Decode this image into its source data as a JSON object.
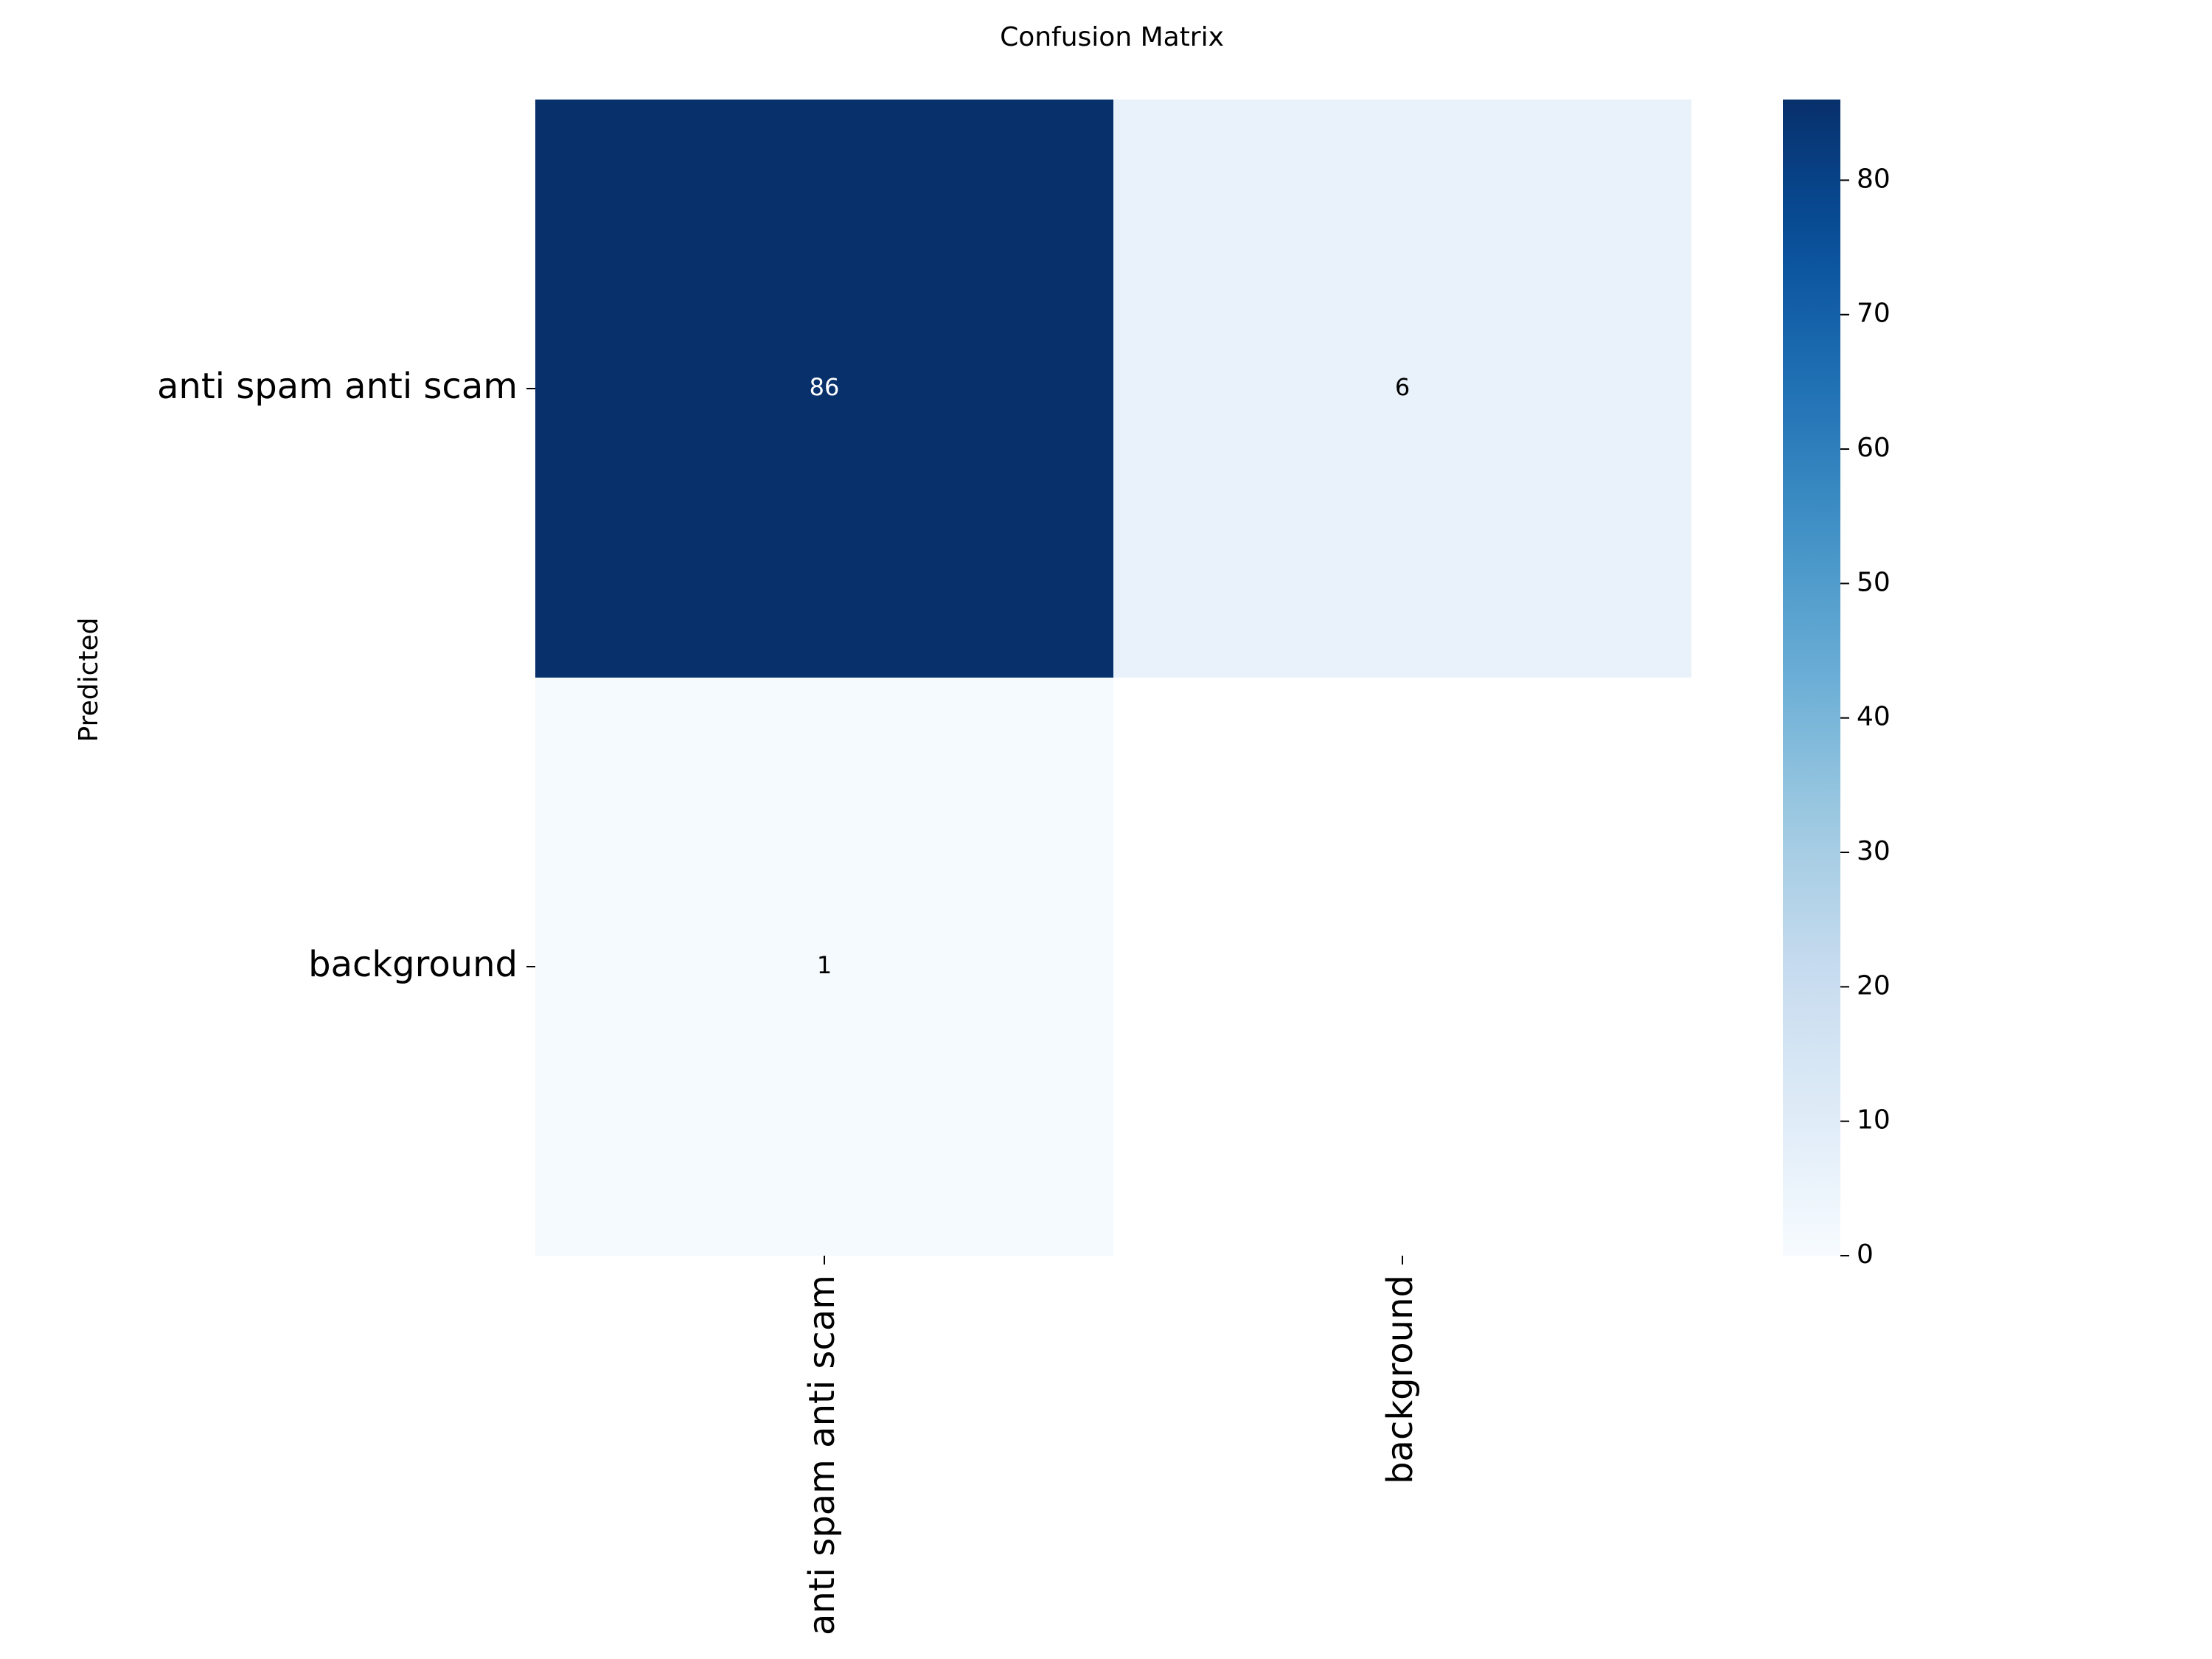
{
  "chart_data": {
    "type": "heatmap",
    "title": "Confusion Matrix",
    "ylabel": "Predicted",
    "xlabel": "",
    "row_labels": [
      "anti spam anti scam",
      "background"
    ],
    "col_labels": [
      "anti spam anti scam",
      "background"
    ],
    "values": [
      [
        86,
        6
      ],
      [
        1,
        null
      ]
    ],
    "colormap": "Blues",
    "colorbar": {
      "range": [
        0,
        86
      ],
      "ticks": [
        0,
        10,
        20,
        30,
        40,
        50,
        60,
        70,
        80
      ],
      "tick_labels": [
        "0",
        "10",
        "20",
        "30",
        "40",
        "50",
        "60",
        "70",
        "80"
      ]
    },
    "colors": {
      "low": "#f7fbff",
      "high": "#08306b"
    }
  }
}
